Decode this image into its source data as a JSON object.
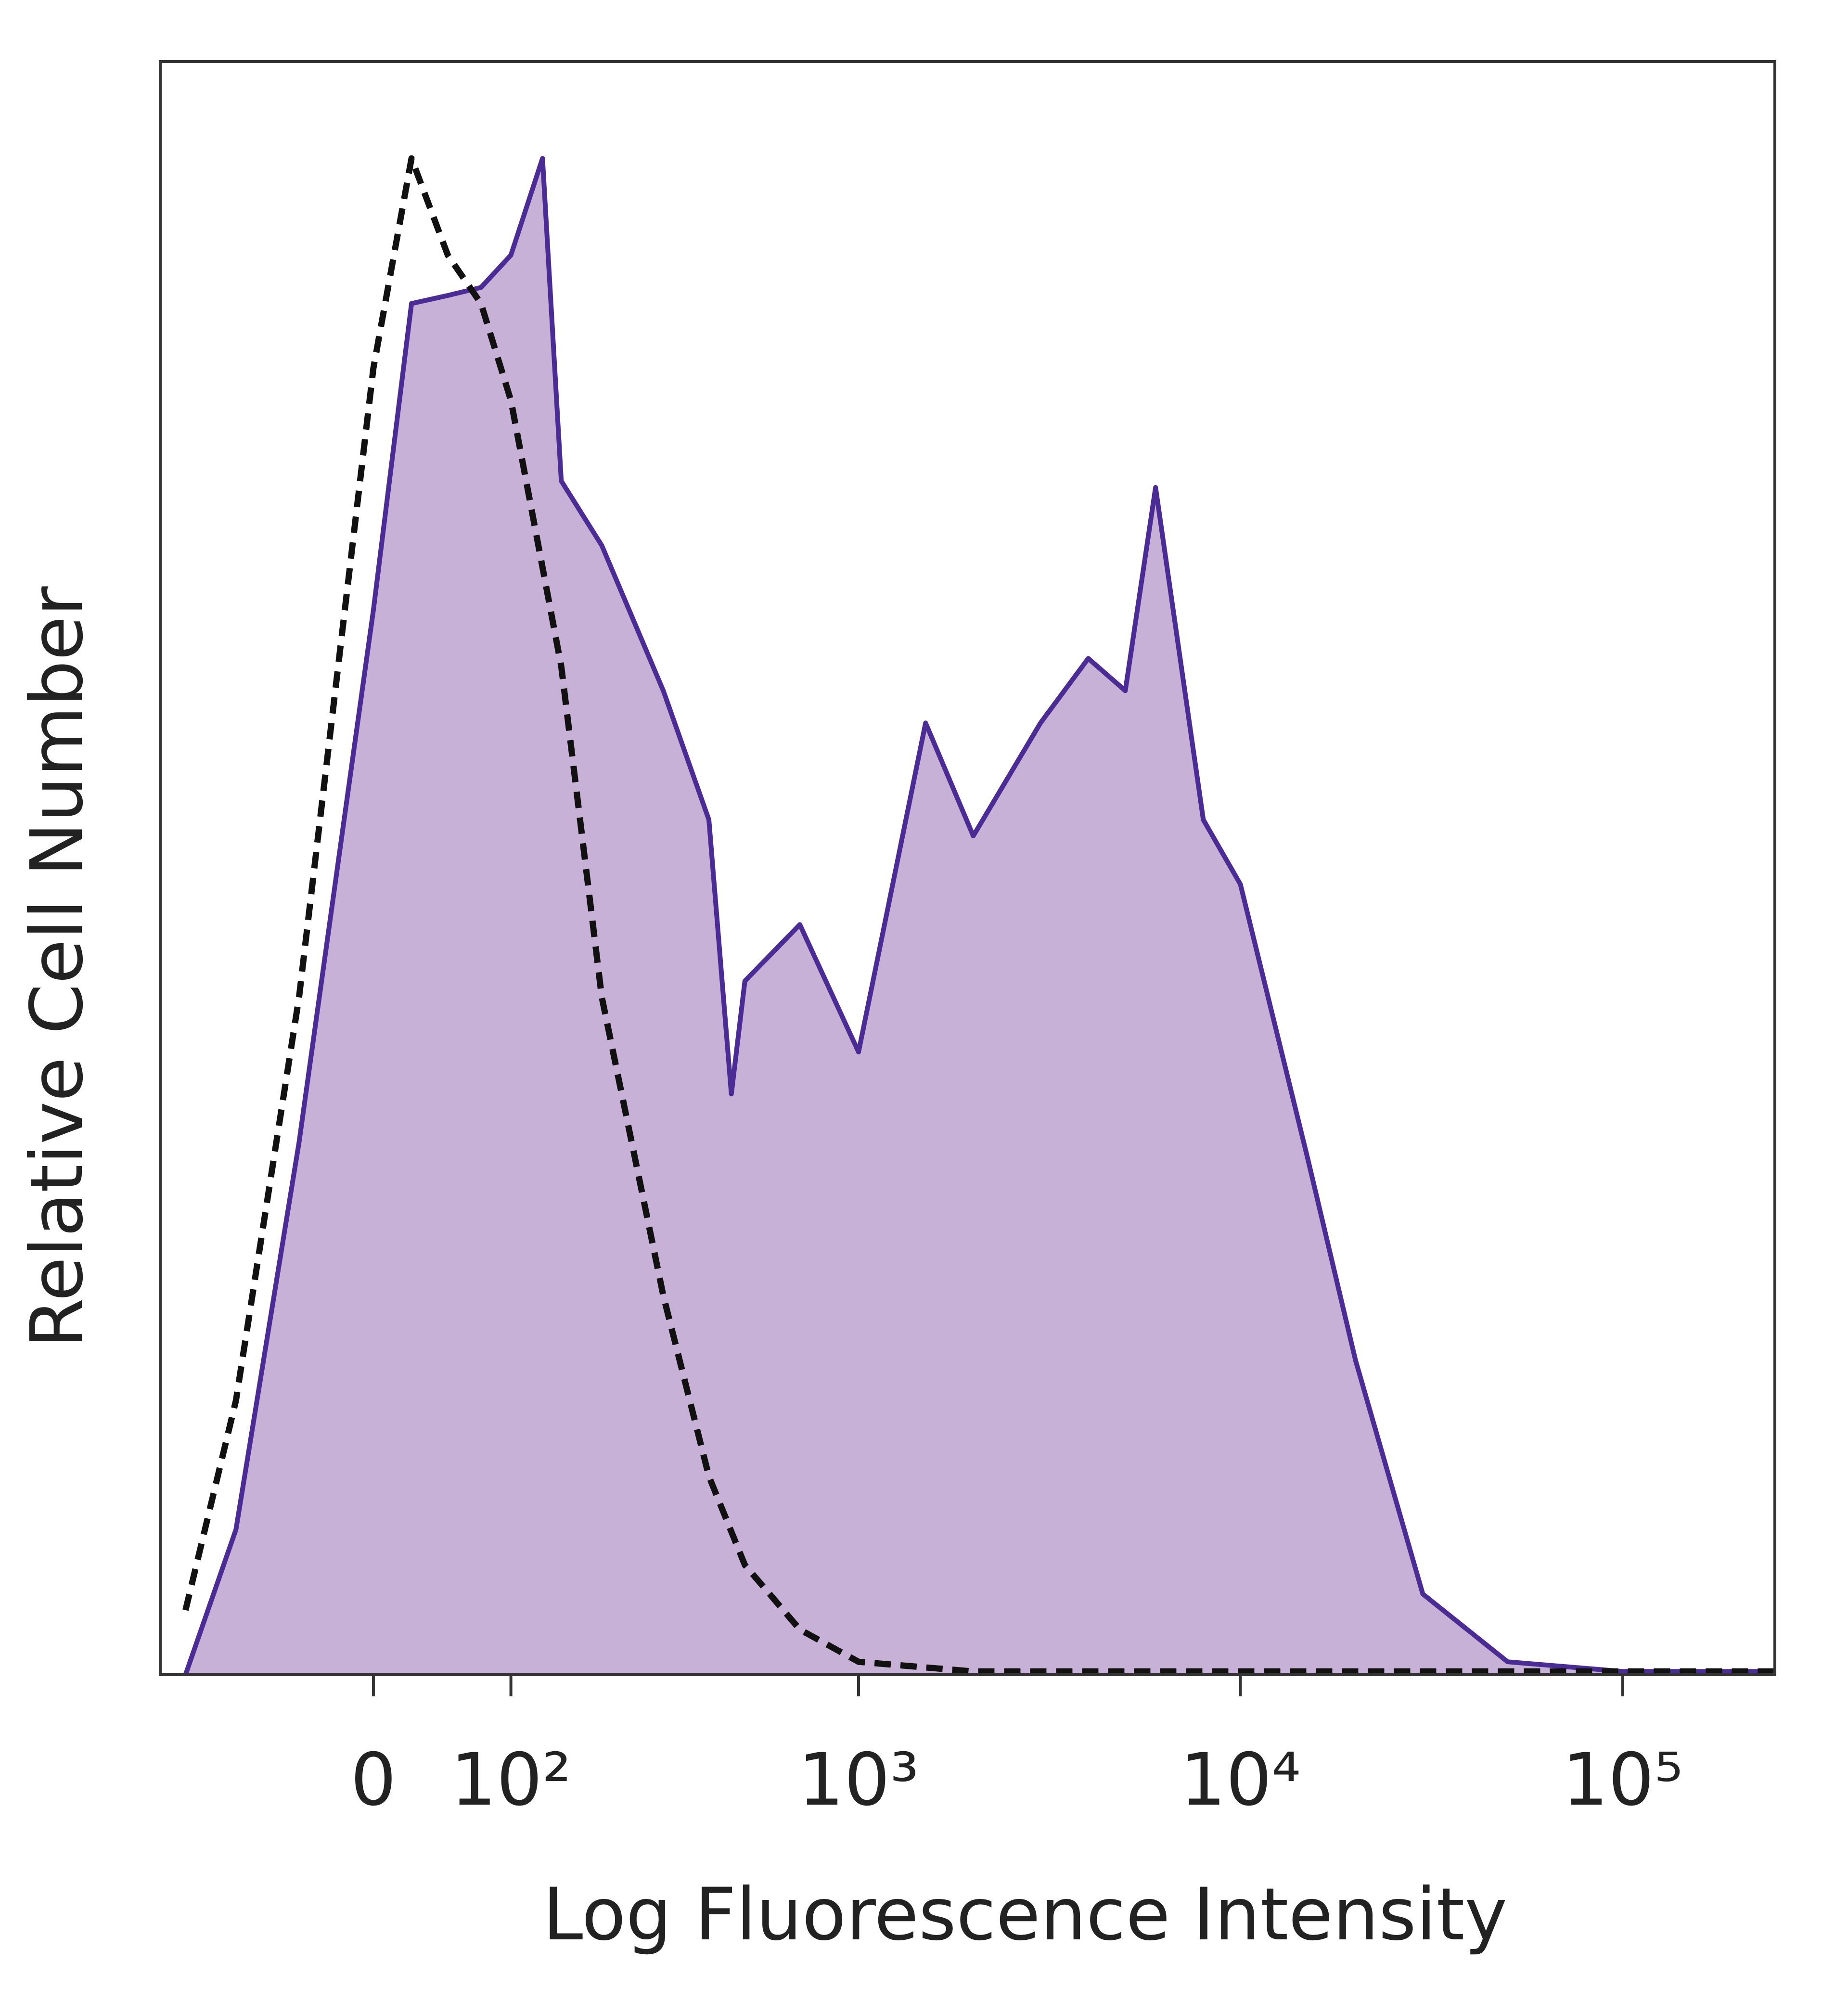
{
  "chart_data": {
    "type": "area",
    "xlabel": "Log Fluorescence Intensity",
    "ylabel": "Relative Cell Number",
    "xscale": "biexponential",
    "xlim": [
      -180,
      250000
    ],
    "ylim": [
      0,
      100
    ],
    "xticks": [
      0,
      {
        "value": 100,
        "label": "10²"
      },
      {
        "value": 1000,
        "label": "10³"
      },
      {
        "value": 10000,
        "label": "10⁴"
      },
      {
        "value": 100000,
        "label": "10⁵"
      }
    ],
    "series": [
      {
        "color": "#4a2c94",
        "fill": "#c8b1d7",
        "dashed": false,
        "x": [
          -150,
          -100,
          -50,
          0,
          25,
          50,
          75,
          100,
          130,
          150,
          200,
          300,
          400,
          460,
          500,
          700,
          1000,
          1500,
          2000,
          3000,
          4000,
          5000,
          6000,
          8000,
          10000,
          15000,
          20000,
          30000,
          50000,
          100000,
          250000
        ],
        "values": [
          0,
          9,
          33,
          66,
          85,
          85.5,
          86,
          88,
          94,
          74,
          70,
          61,
          53,
          36,
          43,
          46.5,
          38.6,
          59,
          52,
          59,
          63,
          61,
          73.6,
          53,
          49,
          32,
          19.5,
          5,
          0.8,
          0.2,
          0.2
        ]
      },
      {
        "color": "#111111",
        "fill": "none",
        "dashed": true,
        "x": [
          -150,
          -100,
          -50,
          0,
          25,
          50,
          75,
          100,
          150,
          200,
          300,
          400,
          500,
          700,
          1000,
          2000,
          10000,
          100000,
          250000
        ],
        "values": [
          4,
          17,
          42,
          81,
          94,
          88,
          85,
          79,
          62.5,
          42,
          23.5,
          12.3,
          6.8,
          2.8,
          0.8,
          0.2,
          0.2,
          0.2,
          0.2
        ]
      }
    ]
  }
}
